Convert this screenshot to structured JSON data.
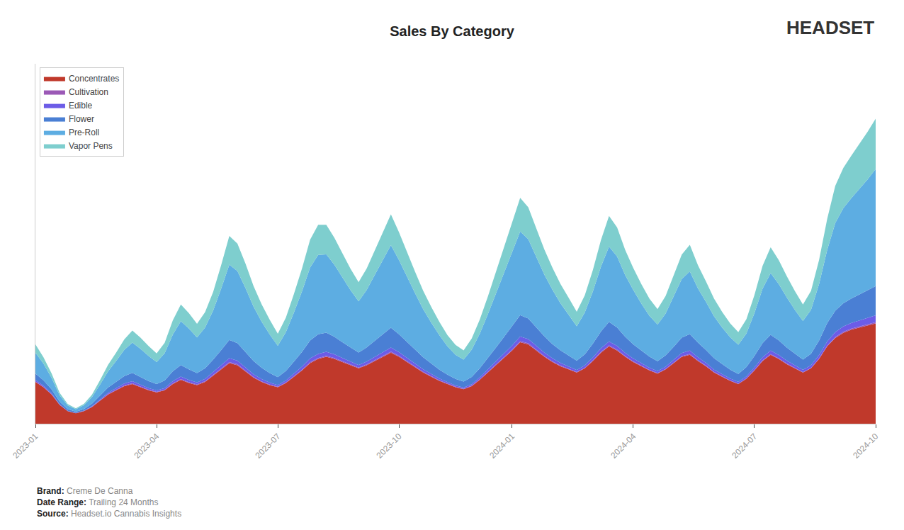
{
  "chart_data": {
    "type": "area",
    "title": "Sales By Category",
    "categories": [
      "2023-01",
      null,
      null,
      null,
      null,
      null,
      null,
      null,
      null,
      null,
      null,
      null,
      null,
      null,
      null,
      "2023-04",
      null,
      null,
      null,
      null,
      null,
      null,
      null,
      null,
      null,
      null,
      null,
      null,
      null,
      null,
      "2023-07",
      null,
      null,
      null,
      null,
      null,
      null,
      null,
      null,
      null,
      null,
      null,
      null,
      null,
      null,
      "2023-10",
      null,
      null,
      null,
      null,
      null,
      null,
      null,
      null,
      null,
      null,
      null,
      null,
      null,
      "2024-01",
      null,
      null,
      null,
      null,
      null,
      null,
      null,
      null,
      null,
      null,
      null,
      null,
      null,
      null,
      "2024-04",
      null,
      null,
      null,
      null,
      null,
      null,
      null,
      null,
      null,
      null,
      null,
      null,
      null,
      null,
      "2024-07",
      null,
      null,
      null,
      null,
      null,
      null,
      null,
      null,
      null,
      null,
      null,
      null,
      null,
      null,
      "2024-10"
    ],
    "series": [
      {
        "name": "Concentrates",
        "color": "#c0392b",
        "values": [
          4000,
          3500,
          2800,
          1800,
          1200,
          1000,
          1200,
          1600,
          2200,
          2800,
          3200,
          3600,
          3800,
          3500,
          3200,
          3000,
          3200,
          3800,
          4200,
          3900,
          3700,
          4000,
          4600,
          5200,
          5800,
          5600,
          5000,
          4400,
          4000,
          3700,
          3500,
          3900,
          4500,
          5100,
          5800,
          6200,
          6400,
          6200,
          5900,
          5600,
          5300,
          5600,
          6000,
          6400,
          6800,
          6400,
          5900,
          5400,
          4900,
          4500,
          4100,
          3800,
          3500,
          3300,
          3600,
          4200,
          4900,
          5600,
          6300,
          7000,
          7800,
          7600,
          7000,
          6400,
          5900,
          5500,
          5200,
          4900,
          5300,
          6000,
          6800,
          7400,
          7000,
          6400,
          5900,
          5500,
          5100,
          4800,
          5200,
          5800,
          6400,
          6600,
          6000,
          5500,
          4900,
          4500,
          4100,
          3800,
          4300,
          5100,
          6000,
          6600,
          6200,
          5700,
          5300,
          4900,
          5300,
          6200,
          7400,
          8200,
          8700,
          9000,
          9200,
          9400,
          9600
        ]
      },
      {
        "name": "Cultivation",
        "color": "#9b59b6",
        "values": [
          40,
          30,
          25,
          15,
          10,
          8,
          12,
          20,
          30,
          40,
          50,
          60,
          65,
          58,
          52,
          45,
          52,
          65,
          72,
          65,
          58,
          65,
          75,
          88,
          100,
          92,
          80,
          68,
          58,
          50,
          42,
          50,
          62,
          75,
          88,
          95,
          100,
          92,
          82,
          72,
          65,
          72,
          82,
          92,
          100,
          92,
          82,
          72,
          62,
          55,
          48,
          40,
          36,
          32,
          38,
          48,
          58,
          70,
          82,
          92,
          102,
          95,
          85,
          75,
          65,
          58,
          50,
          42,
          50,
          62,
          75,
          85,
          78,
          68,
          60,
          52,
          46,
          40,
          46,
          55,
          65,
          70,
          62,
          55,
          48,
          42,
          36,
          32,
          38,
          48,
          60,
          68,
          62,
          55,
          48,
          40,
          46,
          58,
          72,
          85,
          92,
          98,
          105,
          112,
          120
        ]
      },
      {
        "name": "Edible",
        "color": "#6c5ce7",
        "values": [
          150,
          120,
          90,
          55,
          35,
          25,
          35,
          55,
          90,
          120,
          150,
          180,
          200,
          180,
          160,
          140,
          160,
          210,
          240,
          220,
          195,
          220,
          260,
          310,
          370,
          350,
          310,
          260,
          220,
          185,
          155,
          185,
          240,
          300,
          360,
          390,
          380,
          350,
          310,
          275,
          245,
          275,
          310,
          350,
          390,
          355,
          310,
          270,
          235,
          205,
          175,
          150,
          130,
          120,
          145,
          185,
          230,
          280,
          335,
          390,
          435,
          410,
          365,
          325,
          285,
          252,
          220,
          188,
          225,
          278,
          340,
          385,
          360,
          315,
          280,
          248,
          218,
          195,
          220,
          258,
          305,
          332,
          295,
          262,
          230,
          205,
          182,
          165,
          192,
          240,
          300,
          340,
          315,
          280,
          250,
          220,
          252,
          320,
          400,
          472,
          510,
          540,
          575,
          610,
          648
        ]
      },
      {
        "name": "Flower",
        "color": "#4a7fd4",
        "values": [
          600,
          500,
          380,
          230,
          150,
          115,
          150,
          240,
          380,
          510,
          620,
          720,
          800,
          740,
          680,
          610,
          730,
          950,
          1100,
          1020,
          900,
          1020,
          1200,
          1450,
          1750,
          1670,
          1500,
          1270,
          1080,
          910,
          755,
          920,
          1150,
          1410,
          1710,
          1870,
          1830,
          1680,
          1510,
          1340,
          1200,
          1350,
          1540,
          1720,
          1900,
          1720,
          1540,
          1340,
          1160,
          1000,
          850,
          710,
          630,
          580,
          700,
          880,
          1090,
          1330,
          1590,
          1840,
          2060,
          1960,
          1750,
          1560,
          1360,
          1200,
          1060,
          900,
          1070,
          1320,
          1620,
          1880,
          1770,
          1540,
          1360,
          1200,
          1060,
          955,
          1080,
          1250,
          1470,
          1580,
          1400,
          1240,
          1090,
          960,
          850,
          770,
          890,
          1100,
          1350,
          1500,
          1400,
          1250,
          1100,
          970,
          1100,
          1390,
          1750,
          2050,
          2220,
          2350,
          2500,
          2650,
          2800
        ]
      },
      {
        "name": "Pre-Roll",
        "color": "#5dade2",
        "values": [
          2000,
          1600,
          1100,
          620,
          350,
          240,
          360,
          620,
          1050,
          1550,
          2000,
          2500,
          2900,
          2700,
          2400,
          2100,
          2600,
          3500,
          4200,
          3900,
          3400,
          3900,
          4700,
          5900,
          7200,
          6900,
          6100,
          5200,
          4400,
          3700,
          3000,
          3700,
          4700,
          5800,
          7000,
          7600,
          7500,
          6900,
          6200,
          5500,
          4900,
          5500,
          6300,
          7100,
          7900,
          7100,
          6200,
          5400,
          4600,
          3900,
          3300,
          2700,
          2300,
          2100,
          2600,
          3300,
          4200,
          5200,
          6200,
          7100,
          8000,
          7600,
          6700,
          5900,
          5200,
          4500,
          3900,
          3300,
          4000,
          5000,
          6200,
          7200,
          6800,
          5900,
          5200,
          4500,
          3900,
          3500,
          4000,
          4800,
          5600,
          6000,
          5200,
          4600,
          4000,
          3500,
          3100,
          2800,
          3200,
          4100,
          5200,
          5900,
          5400,
          4800,
          4200,
          3700,
          4200,
          5400,
          7000,
          8400,
          9100,
          9600,
          10100,
          10600,
          11200
        ]
      },
      {
        "name": "Vapor Pens",
        "color": "#7ecece",
        "values": [
          800,
          600,
          420,
          230,
          130,
          90,
          140,
          250,
          420,
          620,
          800,
          1000,
          1150,
          1060,
          950,
          830,
          1000,
          1350,
          1600,
          1470,
          1300,
          1470,
          1780,
          2250,
          2750,
          2620,
          2340,
          1970,
          1660,
          1400,
          1150,
          1400,
          1780,
          2180,
          2650,
          2880,
          2820,
          2580,
          2310,
          2050,
          1840,
          2050,
          2350,
          2640,
          2940,
          2660,
          2350,
          2050,
          1760,
          1510,
          1280,
          1070,
          950,
          890,
          1070,
          1360,
          1700,
          2080,
          2490,
          2870,
          3220,
          3050,
          2720,
          2400,
          2100,
          1850,
          1620,
          1390,
          1650,
          2060,
          2540,
          2940,
          2770,
          2400,
          2100,
          1860,
          1640,
          1470,
          1680,
          1980,
          2350,
          2530,
          2210,
          1950,
          1700,
          1490,
          1320,
          1190,
          1380,
          1740,
          2200,
          2480,
          2280,
          2030,
          1800,
          1580,
          1810,
          2310,
          2980,
          3560,
          3850,
          4080,
          4320,
          4560,
          4820
        ]
      }
    ],
    "stacked": true,
    "ylim": [
      0,
      34441.84
    ],
    "tick_labels": "x",
    "grid": false,
    "legend": "upper left",
    "annotations": [
      "Brand:",
      "Creme De Canna",
      "Date Range:",
      "Trailing 24 Months",
      "Source:",
      "Headset.io Cannabis Insights",
      "HEADSET"
    ]
  }
}
